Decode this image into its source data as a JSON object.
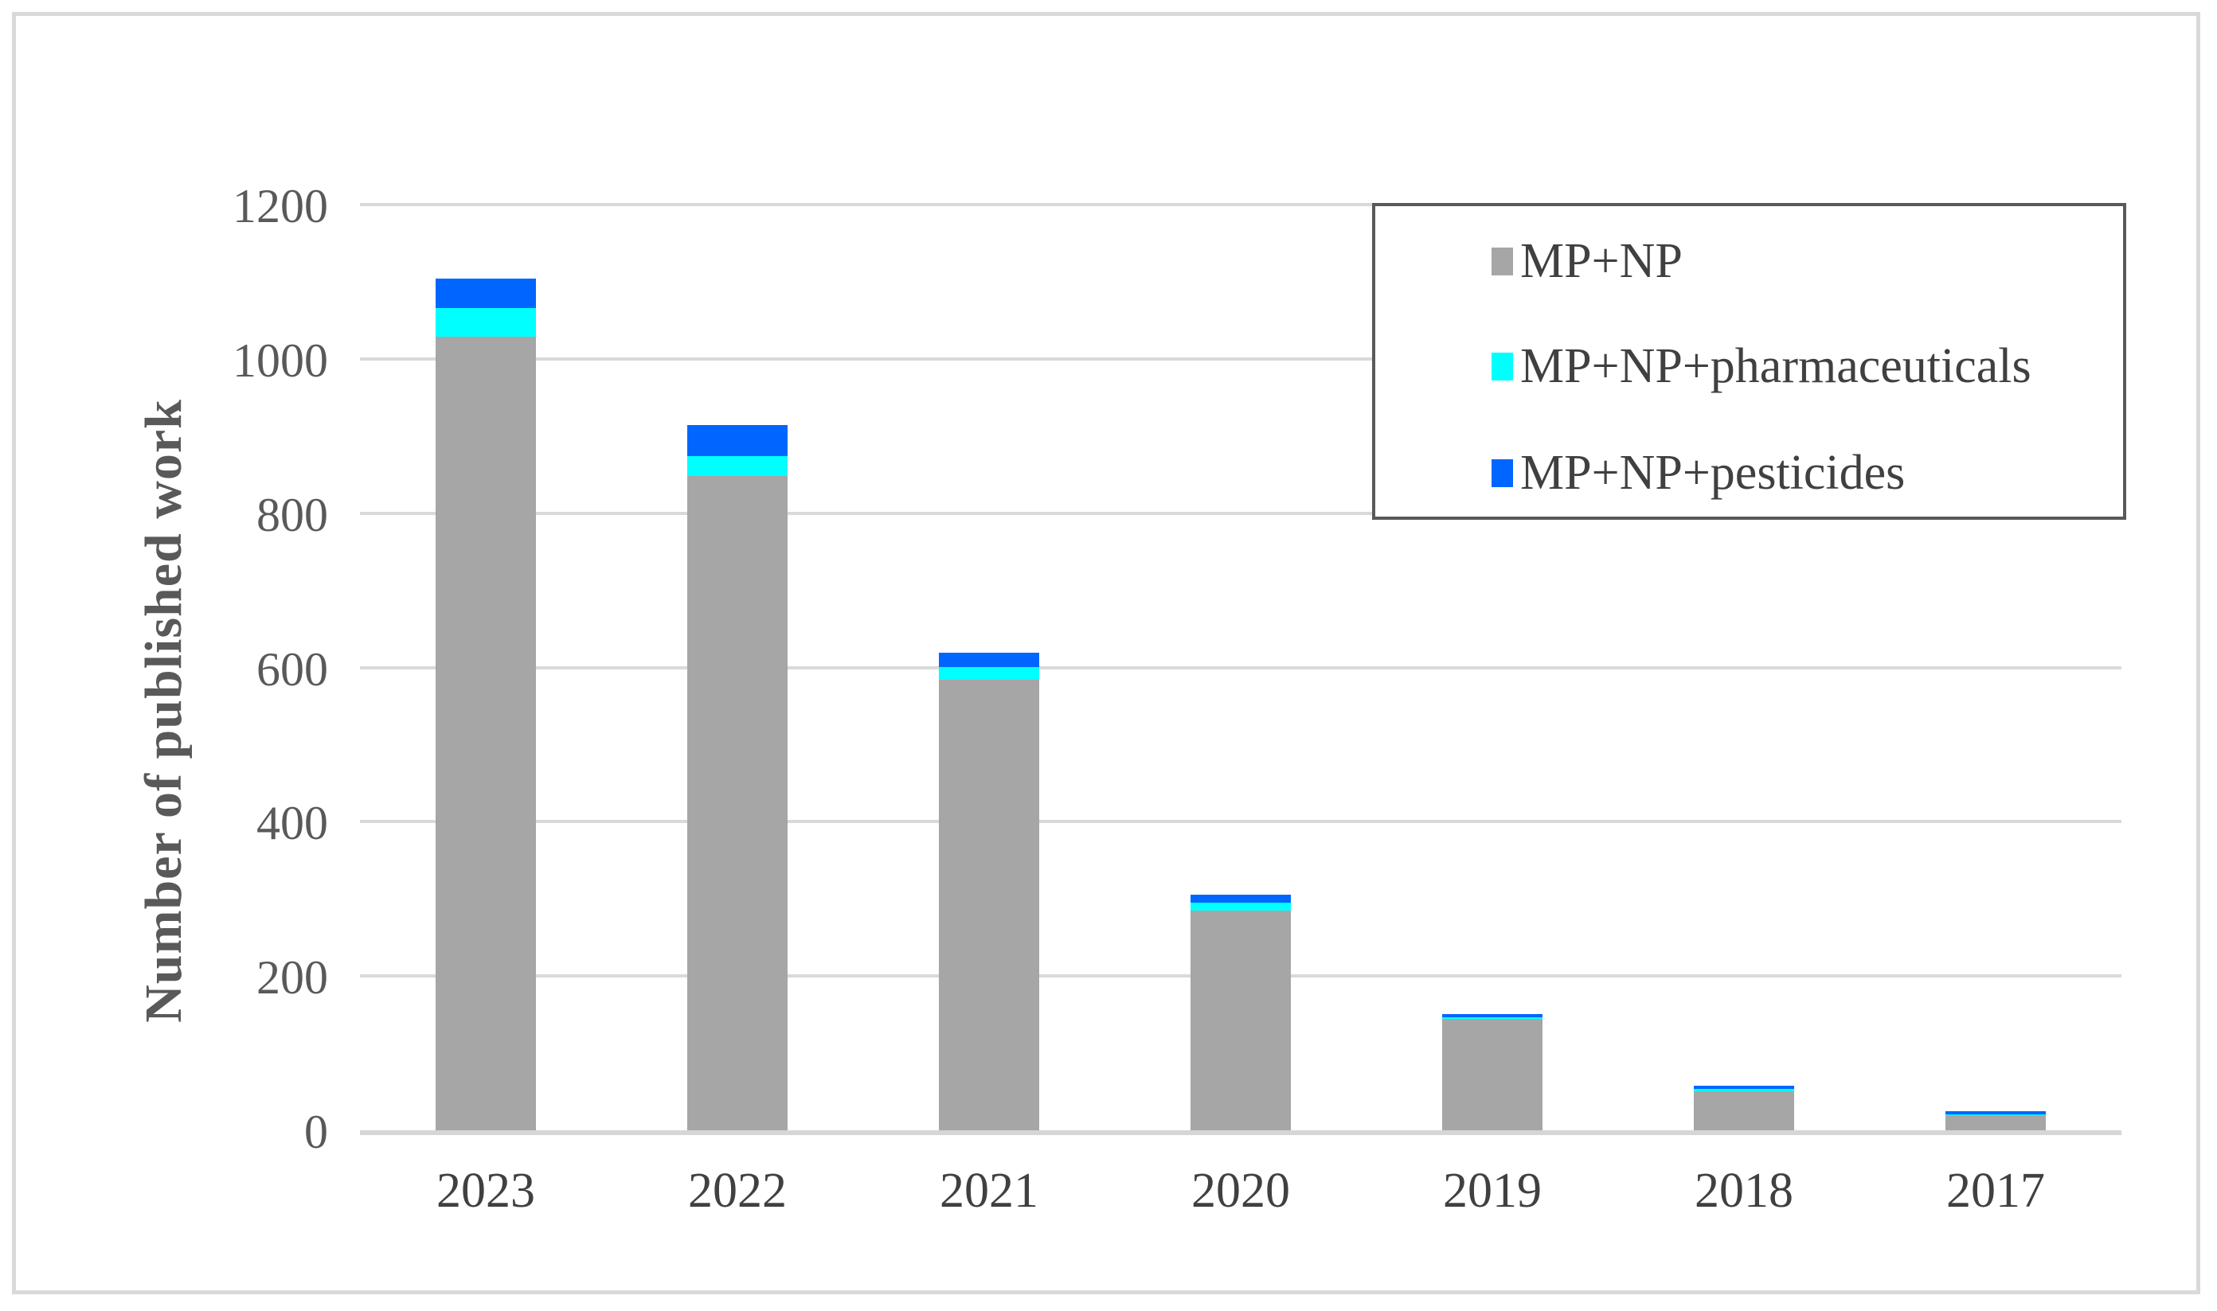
{
  "chart_data": {
    "type": "bar",
    "stacked": true,
    "title": "",
    "categories": [
      "2023",
      "2022",
      "2021",
      "2020",
      "2019",
      "2018",
      "2017"
    ],
    "series": [
      {
        "name": "MP+NP",
        "color": "#A6A6A6",
        "values": [
          1029,
          848,
          584,
          285,
          144,
          51,
          20
        ]
      },
      {
        "name": "MP+NP+pharmaceuticals",
        "color": "#00FFFF",
        "values": [
          37,
          26,
          17,
          10,
          3,
          3,
          1
        ]
      },
      {
        "name": "MP+NP+pesticides",
        "color": "#0066FF",
        "values": [
          38,
          40,
          18,
          10,
          4,
          4,
          4
        ]
      }
    ],
    "xlabel": "",
    "ylabel": "Number of published work",
    "ylim": [
      0,
      1200
    ],
    "ytick_step": 200,
    "yticks": [
      "0",
      "200",
      "400",
      "600",
      "800",
      "1000",
      "1200"
    ],
    "grid": true,
    "legend_position": "top-right"
  },
  "colors": {
    "bar_gray": "#A6A6A6",
    "bar_cyan": "#00FFFF",
    "bar_blue": "#0066FF",
    "gridline": "#D9D9D9",
    "frame_border": "#D9D9D9",
    "legend_border": "#595959",
    "axis_text": "#595959",
    "category_text": "#404040"
  }
}
